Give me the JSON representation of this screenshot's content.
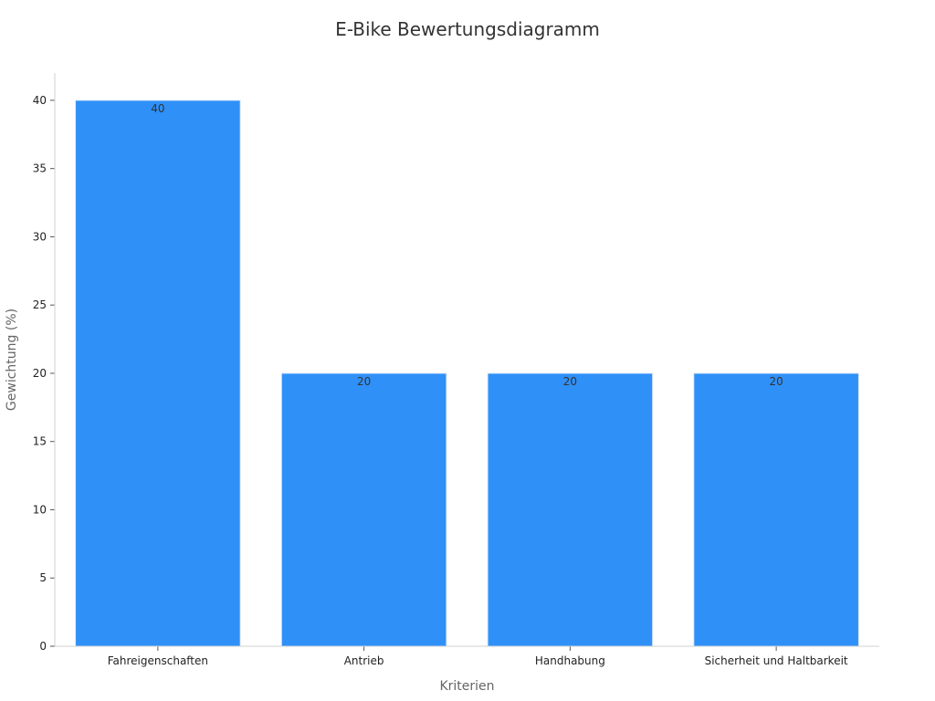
{
  "chart_data": {
    "type": "bar",
    "title": "E-Bike Bewertungsdiagramm",
    "xlabel": "Kriterien",
    "ylabel": "Gewichtung (%)",
    "categories": [
      "Fahreigenschaften",
      "Antrieb",
      "Handhabung",
      "Sicherheit und Haltbarkeit"
    ],
    "values": [
      40,
      20,
      20,
      20
    ],
    "data_labels": [
      "40",
      "20",
      "20",
      "20"
    ],
    "ylim": [
      0,
      42
    ],
    "yticks": [
      0,
      5,
      10,
      15,
      20,
      25,
      30,
      35,
      40
    ],
    "bar_color": "#2f90f8",
    "grid": false,
    "legend": "none"
  }
}
